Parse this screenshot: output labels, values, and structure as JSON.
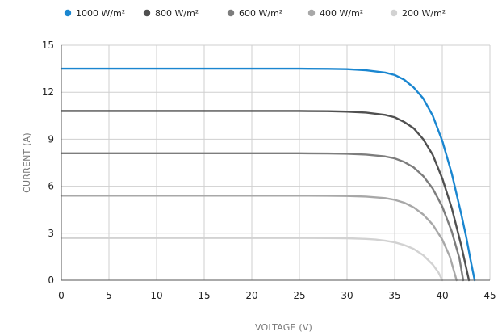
{
  "chart_data": {
    "type": "line",
    "title": "",
    "xlabel": "VOLTAGE (V)",
    "ylabel": "CURRENT (A)",
    "xlim": [
      0,
      45
    ],
    "ylim": [
      0,
      15
    ],
    "xticks": [
      0,
      5,
      10,
      15,
      20,
      25,
      30,
      35,
      40,
      45
    ],
    "yticks": [
      0,
      3,
      6,
      9,
      12,
      15
    ],
    "grid": true,
    "legend_position": "top",
    "series": [
      {
        "name": "1000 W/m²",
        "color": "#1a86d0",
        "isc": 13.5,
        "voc": 43.4,
        "x": [
          0,
          5,
          10,
          15,
          20,
          25,
          28,
          30,
          32,
          34,
          35,
          36,
          37,
          38,
          39,
          40,
          41,
          42,
          42.5,
          43,
          43.4
        ],
        "y": [
          13.5,
          13.5,
          13.5,
          13.5,
          13.5,
          13.5,
          13.49,
          13.47,
          13.4,
          13.25,
          13.1,
          12.8,
          12.3,
          11.6,
          10.5,
          8.9,
          6.8,
          4.2,
          2.8,
          1.2,
          0
        ]
      },
      {
        "name": "800 W/m²",
        "color": "#505050",
        "isc": 10.8,
        "voc": 42.8,
        "x": [
          0,
          5,
          10,
          15,
          20,
          25,
          28,
          30,
          32,
          34,
          35,
          36,
          37,
          38,
          39,
          40,
          41,
          42,
          42.4,
          42.8
        ],
        "y": [
          10.8,
          10.8,
          10.8,
          10.8,
          10.8,
          10.8,
          10.79,
          10.76,
          10.7,
          10.55,
          10.4,
          10.1,
          9.7,
          9.0,
          8.0,
          6.5,
          4.6,
          2.2,
          1.1,
          0
        ]
      },
      {
        "name": "600 W/m²",
        "color": "#7d7d7d",
        "isc": 8.1,
        "voc": 42.2,
        "x": [
          0,
          5,
          10,
          15,
          20,
          25,
          28,
          30,
          32,
          34,
          35,
          36,
          37,
          38,
          39,
          40,
          41,
          41.8,
          42.2
        ],
        "y": [
          8.1,
          8.1,
          8.1,
          8.1,
          8.1,
          8.1,
          8.09,
          8.07,
          8.02,
          7.9,
          7.78,
          7.55,
          7.2,
          6.65,
          5.85,
          4.7,
          3.1,
          1.4,
          0
        ]
      },
      {
        "name": "400 W/m²",
        "color": "#a8a8a8",
        "isc": 5.4,
        "voc": 41.5,
        "x": [
          0,
          5,
          10,
          15,
          20,
          25,
          28,
          30,
          32,
          34,
          35,
          36,
          37,
          38,
          39,
          40,
          40.8,
          41.5
        ],
        "y": [
          5.4,
          5.4,
          5.4,
          5.4,
          5.4,
          5.4,
          5.39,
          5.38,
          5.34,
          5.24,
          5.13,
          4.95,
          4.65,
          4.2,
          3.55,
          2.6,
          1.5,
          0
        ]
      },
      {
        "name": "200 W/m²",
        "color": "#d2d2d2",
        "isc": 2.7,
        "voc": 40.0,
        "x": [
          0,
          5,
          10,
          15,
          20,
          25,
          28,
          30,
          32,
          33,
          34,
          35,
          36,
          37,
          38,
          39,
          39.6,
          40
        ],
        "y": [
          2.7,
          2.7,
          2.7,
          2.7,
          2.7,
          2.7,
          2.69,
          2.68,
          2.64,
          2.6,
          2.52,
          2.42,
          2.25,
          2.0,
          1.6,
          1.0,
          0.5,
          0
        ]
      }
    ]
  }
}
